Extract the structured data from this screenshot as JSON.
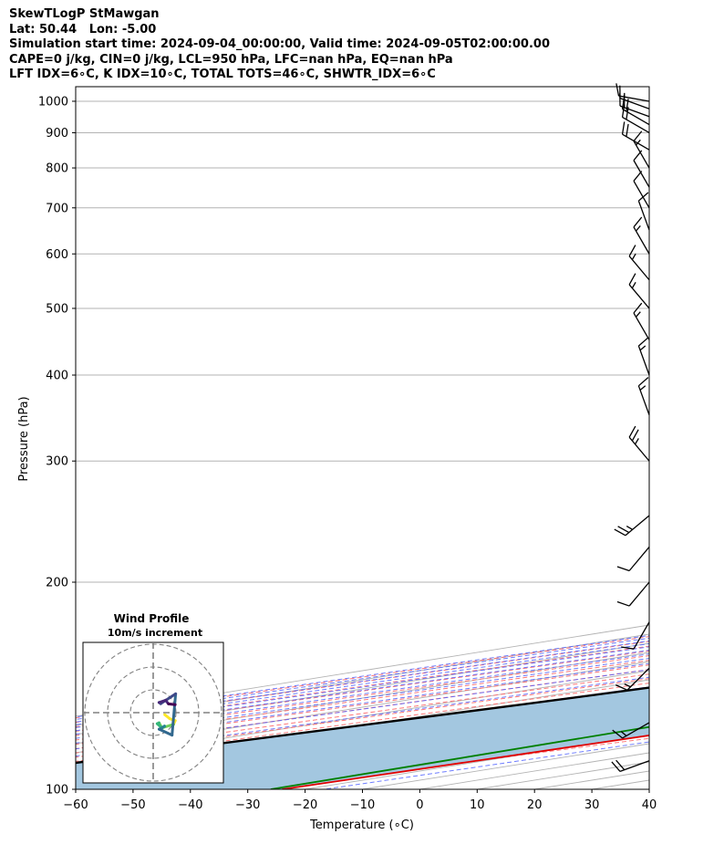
{
  "header": {
    "line1": "SkewTLogP StMawgan",
    "line2": "Lat: 50.44   Lon: -5.00",
    "line3": "Simulation start time: 2024-09-04_00:00:00, Valid time: 2024-09-05T02:00:00.00",
    "line4": "CAPE=0 j/kg, CIN=0 j/kg, LCL=950 hPa, LFC=nan hPa, EQ=nan hPa",
    "line5": "LFT IDX=6∘C, K IDX=10∘C, TOTAL TOTS=46∘C, SHWTR_IDX=6∘C"
  },
  "chart_data": {
    "type": "line",
    "xlabel": "Temperature (∘C)",
    "ylabel": "Pressure (hPa)",
    "xlim": [
      -60,
      40
    ],
    "ylim": [
      1050,
      100
    ],
    "y_scale": "log",
    "x_ticks": [
      -60,
      -50,
      -40,
      -30,
      -20,
      -10,
      0,
      10,
      20,
      30,
      40
    ],
    "x_tick_labels": [
      "−60",
      "−50",
      "−40",
      "−30",
      "−20",
      "−10",
      "0",
      "10",
      "20",
      "30",
      "40"
    ],
    "y_ticks": [
      1000,
      900,
      800,
      700,
      600,
      500,
      400,
      300,
      200,
      100
    ],
    "y_tick_labels": [
      "1000",
      "900",
      "800",
      "700",
      "600",
      "500",
      "400",
      "300",
      "200",
      "100"
    ],
    "grid": true,
    "skew": true,
    "colors": {
      "temperature": "#e00000",
      "dewpoint": "#008000",
      "parcel": "#000000",
      "area": "#a3c7e0",
      "dry_adiabats": "#ff6060",
      "moist_adiabats": "#4a5dff",
      "mixing_ratio": "#8f3fbf",
      "isotherms": "#b3b3b3"
    },
    "series": [
      {
        "name": "",
        "role": "temperature",
        "points": [
          [
            11.8,
            1000
          ],
          [
            11,
            980
          ],
          [
            10,
            930
          ],
          [
            8.5,
            850
          ],
          [
            7.5,
            800
          ],
          [
            6,
            750
          ],
          [
            4.5,
            700
          ],
          [
            2.5,
            650
          ],
          [
            0,
            590
          ],
          [
            -3,
            530
          ],
          [
            -5.5,
            470
          ],
          [
            -7,
            420
          ],
          [
            -8,
            380
          ],
          [
            -8,
            350
          ],
          [
            -8,
            320
          ],
          [
            -7.5,
            300
          ],
          [
            -6,
            270
          ],
          [
            -5.5,
            250
          ],
          [
            -6,
            220
          ],
          [
            -7,
            200
          ],
          [
            -9,
            180
          ],
          [
            -13,
            150
          ],
          [
            -19,
            120
          ],
          [
            -24,
            100
          ]
        ]
      },
      {
        "name": "",
        "role": "dewpoint",
        "points": [
          [
            7.3,
            1003
          ],
          [
            7.5,
            1000
          ],
          [
            5.5,
            990
          ],
          [
            3,
            930
          ],
          [
            1.5,
            880
          ],
          [
            0,
            830
          ],
          [
            -3,
            790
          ],
          [
            -7,
            735
          ],
          [
            -8.5,
            700
          ],
          [
            -9,
            640
          ],
          [
            -11,
            600
          ],
          [
            -14,
            560
          ],
          [
            -18,
            520
          ],
          [
            -22,
            490
          ],
          [
            -28,
            470
          ],
          [
            -30,
            440
          ],
          [
            -30,
            420
          ],
          [
            -29,
            390
          ],
          [
            -30,
            360
          ],
          [
            -31.5,
            330
          ],
          [
            -33,
            300
          ],
          [
            -34,
            280
          ],
          [
            -34,
            260
          ],
          [
            -35,
            230
          ],
          [
            -35.5,
            210
          ],
          [
            -35,
            190
          ],
          [
            -33,
            170
          ],
          [
            -31,
            150
          ],
          [
            -29,
            130
          ],
          [
            -27,
            110
          ],
          [
            -26,
            100
          ]
        ]
      },
      {
        "name": "",
        "role": "parcel",
        "points": [
          [
            10.3,
            1000
          ],
          [
            9,
            985
          ],
          [
            8,
            950
          ],
          [
            7.8,
            940
          ],
          [
            6.5,
            880
          ],
          [
            5.3,
            820
          ],
          [
            3.5,
            760
          ],
          [
            1.5,
            700
          ],
          [
            -1,
            640
          ],
          [
            -3.9,
            580
          ],
          [
            -6.3,
            530
          ],
          [
            -10,
            470
          ],
          [
            -15,
            410
          ],
          [
            -20.5,
            360
          ],
          [
            -26,
            320
          ],
          [
            -33,
            275
          ],
          [
            -40,
            240
          ],
          [
            -48,
            205
          ],
          [
            -56,
            180
          ],
          [
            -65,
            155
          ],
          [
            -75,
            133
          ],
          [
            -86,
            115
          ],
          [
            -94,
            100
          ]
        ]
      }
    ],
    "inset": {
      "title": "Wind Profile",
      "subtitle": "10m/s increment"
    },
    "wind_barbs": [
      {
        "p": 1000,
        "speed_kt": 10,
        "dir": 280
      },
      {
        "p": 975,
        "speed_kt": 15,
        "dir": 290
      },
      {
        "p": 950,
        "speed_kt": 20,
        "dir": 290
      },
      {
        "p": 925,
        "speed_kt": 20,
        "dir": 300
      },
      {
        "p": 900,
        "speed_kt": 20,
        "dir": 300
      },
      {
        "p": 850,
        "speed_kt": 20,
        "dir": 300
      },
      {
        "p": 800,
        "speed_kt": 15,
        "dir": 330
      },
      {
        "p": 750,
        "speed_kt": 10,
        "dir": 330
      },
      {
        "p": 700,
        "speed_kt": 10,
        "dir": 330
      },
      {
        "p": 650,
        "speed_kt": 10,
        "dir": 340
      },
      {
        "p": 600,
        "speed_kt": 15,
        "dir": 330
      },
      {
        "p": 550,
        "speed_kt": 15,
        "dir": 320
      },
      {
        "p": 500,
        "speed_kt": 15,
        "dir": 320
      },
      {
        "p": 450,
        "speed_kt": 15,
        "dir": 330
      },
      {
        "p": 400,
        "speed_kt": 15,
        "dir": 340
      },
      {
        "p": 350,
        "speed_kt": 15,
        "dir": 340
      },
      {
        "p": 300,
        "speed_kt": 25,
        "dir": 320
      },
      {
        "p": 250,
        "speed_kt": 25,
        "dir": 230
      },
      {
        "p": 225,
        "speed_kt": 10,
        "dir": 220
      },
      {
        "p": 200,
        "speed_kt": 10,
        "dir": 220
      },
      {
        "p": 175,
        "speed_kt": 10,
        "dir": 210
      },
      {
        "p": 150,
        "speed_kt": 15,
        "dir": 225
      },
      {
        "p": 125,
        "speed_kt": 15,
        "dir": 240
      },
      {
        "p": 110,
        "speed_kt": 20,
        "dir": 250
      }
    ]
  }
}
